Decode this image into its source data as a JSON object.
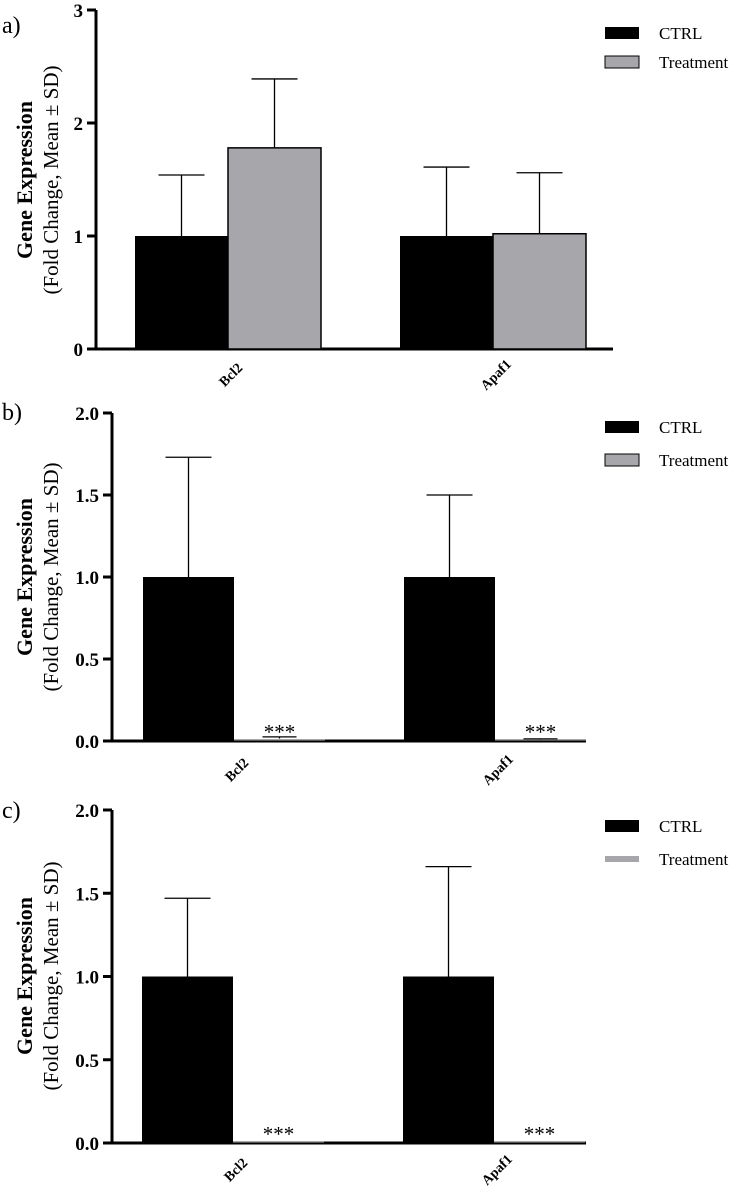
{
  "chart_data": [
    {
      "type": "bar",
      "panel_label": "a)",
      "ylabel_main": "Gene Expression",
      "ylabel_sub": "(Fold Change, Mean ± SD)",
      "categories": [
        "Bcl2",
        "Apaf1"
      ],
      "ylim": [
        0,
        3
      ],
      "yticks": [
        0,
        1,
        2,
        3
      ],
      "ytick_labels": [
        "0",
        "1",
        "2",
        "3"
      ],
      "series": [
        {
          "name": "CTRL",
          "color": "#000000",
          "values": [
            1.0,
            1.0
          ],
          "sd": [
            0.54,
            0.61
          ],
          "annotations": [
            "",
            ""
          ]
        },
        {
          "name": "Treatment",
          "color": "#a7a7ab",
          "values": [
            1.78,
            1.02
          ],
          "sd": [
            0.61,
            0.54
          ],
          "annotations": [
            "",
            ""
          ]
        }
      ]
    },
    {
      "type": "bar",
      "panel_label": "b)",
      "ylabel_main": "Gene Expression",
      "ylabel_sub": "(Fold Change, Mean ± SD)",
      "categories": [
        "Bcl2",
        "Apaf1"
      ],
      "ylim": [
        0,
        2
      ],
      "yticks": [
        0,
        0.5,
        1,
        1.5,
        2
      ],
      "ytick_labels": [
        "0.0",
        "0.5",
        "1.0",
        "1.5",
        "2.0"
      ],
      "series": [
        {
          "name": "CTRL",
          "color": "#000000",
          "values": [
            1.0,
            1.0
          ],
          "sd": [
            0.73,
            0.5
          ],
          "annotations": [
            "",
            ""
          ]
        },
        {
          "name": "Treatment",
          "color": "#a7a7ab",
          "values": [
            0.015,
            0.008
          ],
          "sd": [
            0.01,
            0.005
          ],
          "annotations": [
            "***",
            "***"
          ]
        }
      ]
    },
    {
      "type": "bar",
      "panel_label": "c)",
      "ylabel_main": "Gene Expression",
      "ylabel_sub": "(Fold Change, Mean ± SD)",
      "categories": [
        "Bcl2",
        "Apaf1"
      ],
      "ylim": [
        0,
        2
      ],
      "yticks": [
        0,
        0.5,
        1,
        1.5,
        2
      ],
      "ytick_labels": [
        "0.0",
        "0.5",
        "1.0",
        "1.5",
        "2.0"
      ],
      "series": [
        {
          "name": "CTRL",
          "color": "#000000",
          "values": [
            1.0,
            1.0
          ],
          "sd": [
            0.47,
            0.66
          ],
          "annotations": [
            "",
            ""
          ]
        },
        {
          "name": "Treatment",
          "color": "#a7a7ab",
          "values": [
            0.004,
            0.002
          ],
          "sd": [
            0.0,
            0.0
          ],
          "annotations": [
            "***",
            "***"
          ]
        }
      ]
    }
  ]
}
